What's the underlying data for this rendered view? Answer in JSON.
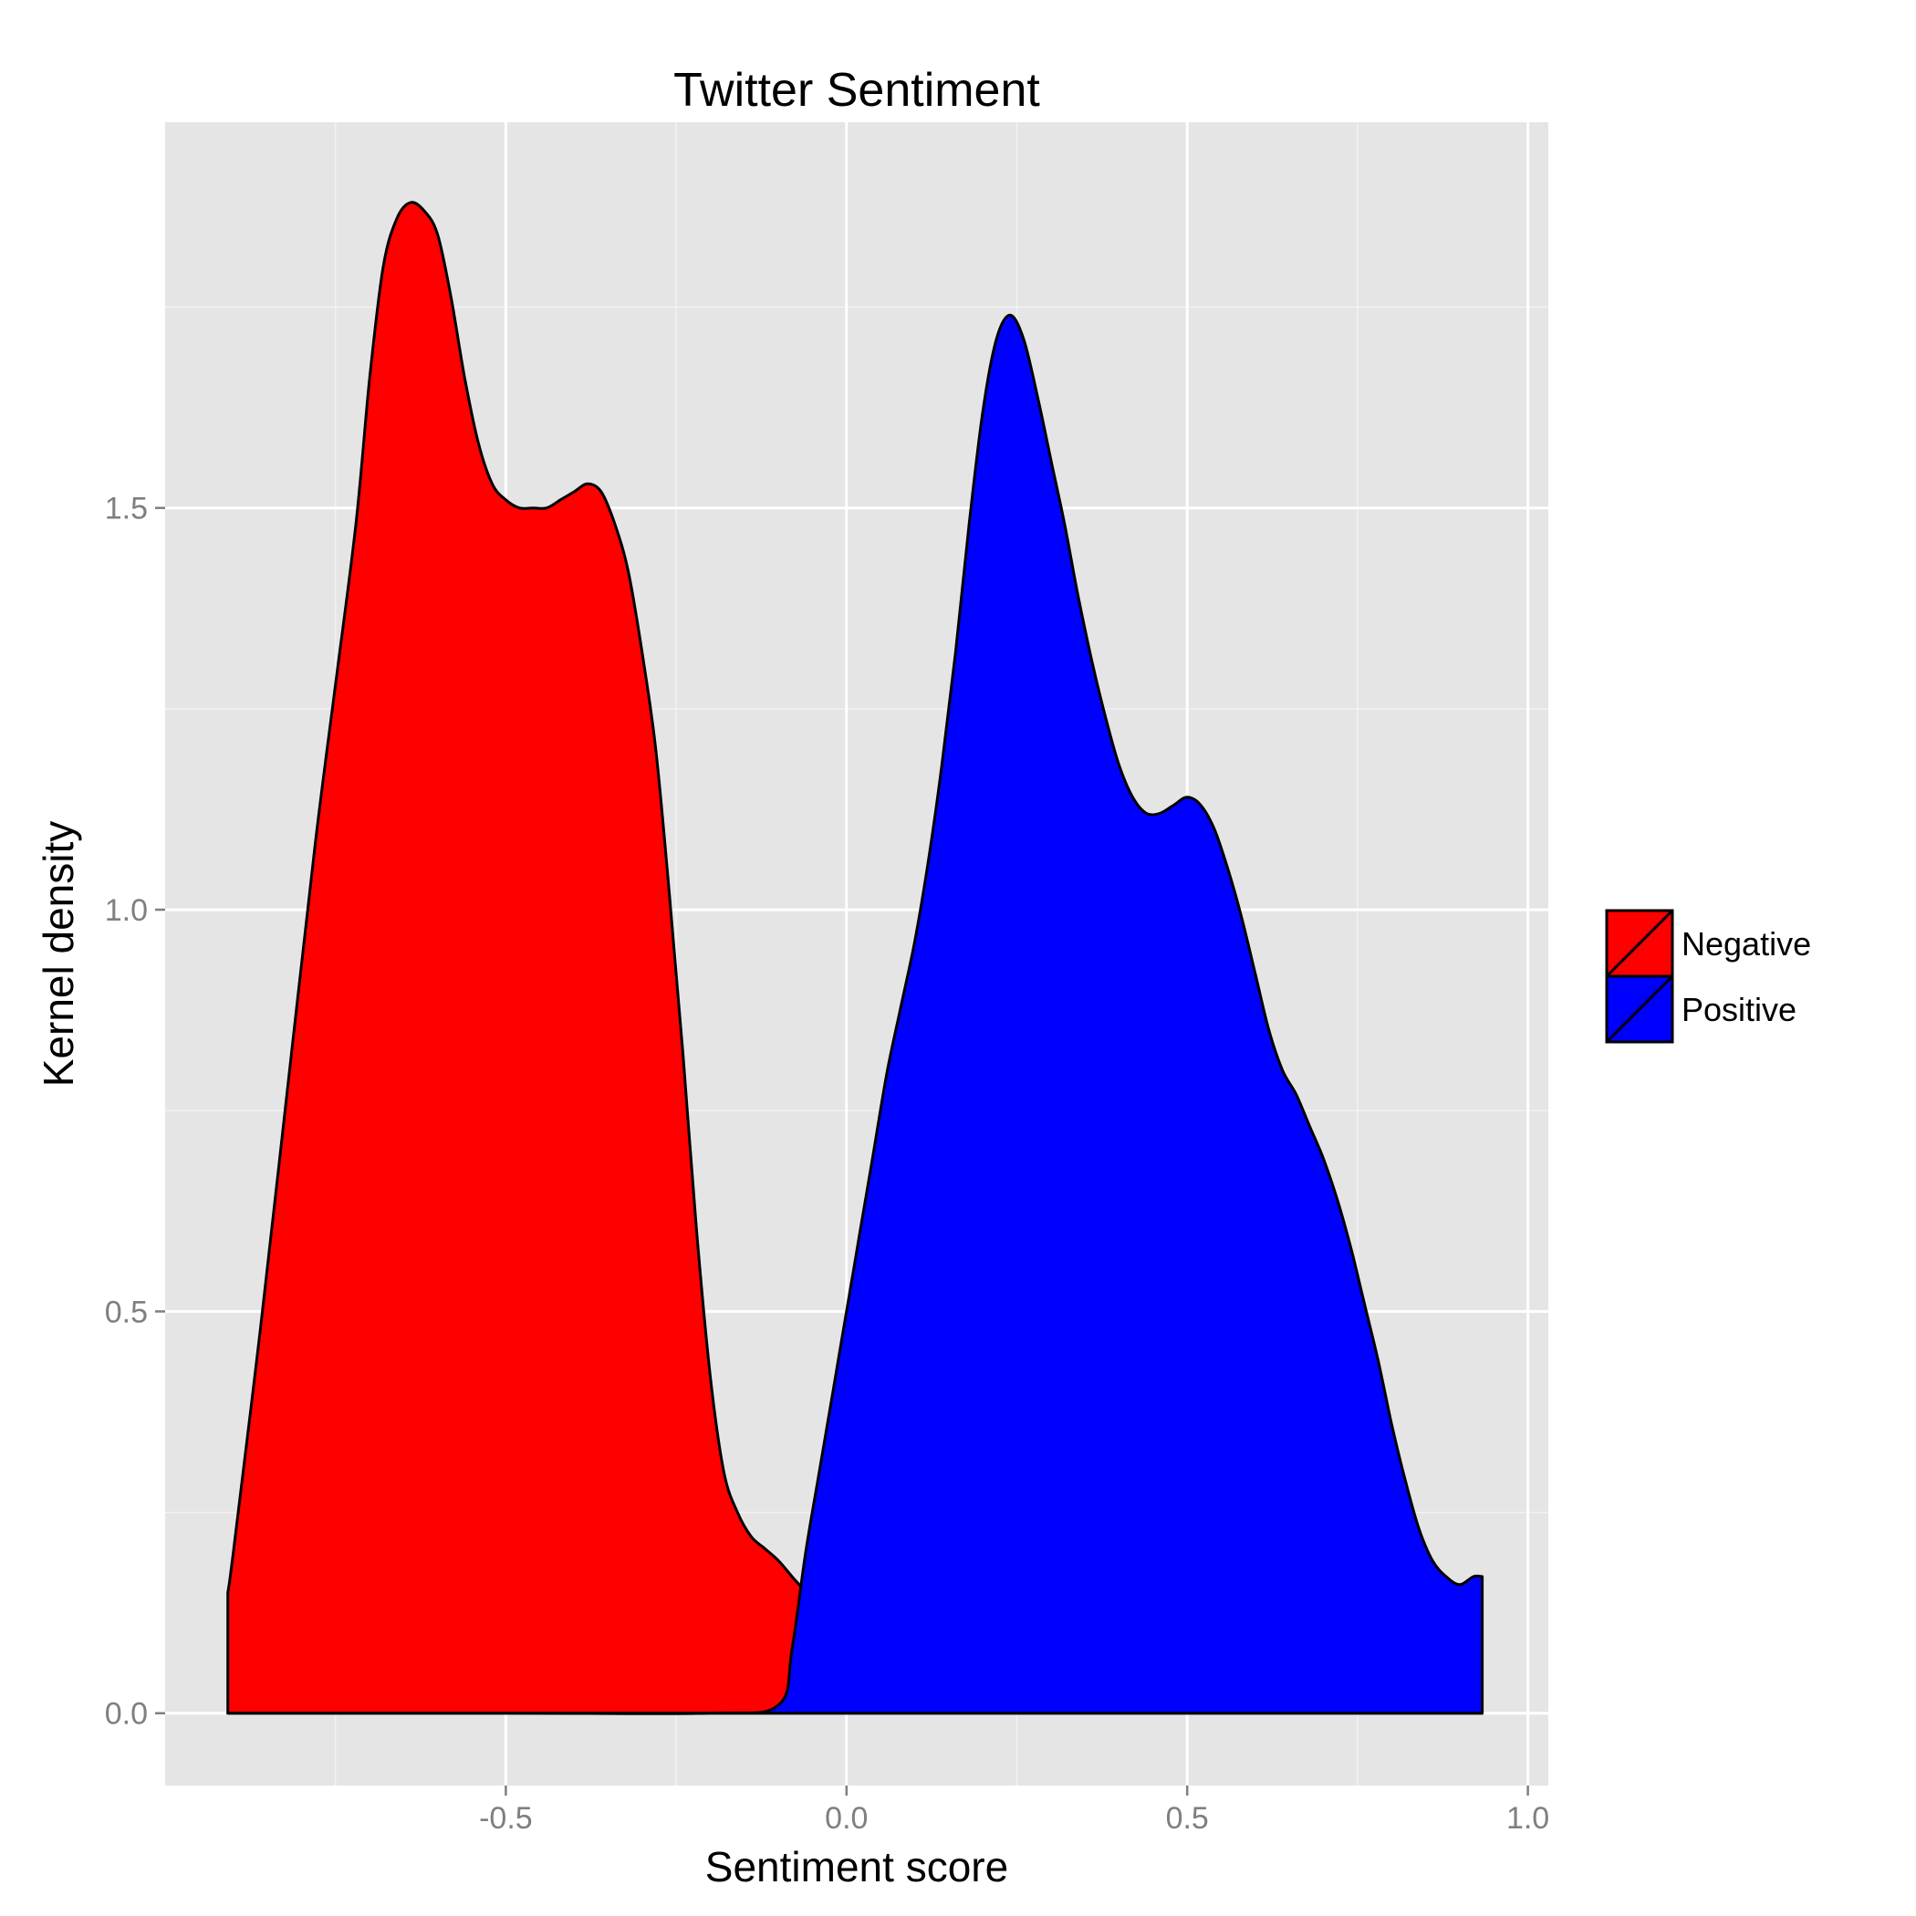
{
  "chart_data": {
    "type": "area",
    "title": "Twitter Sentiment",
    "xlabel": "Sentiment score",
    "ylabel": "Kernel density",
    "xlim": [
      -1.0,
      1.03
    ],
    "ylim": [
      -0.09,
      1.98
    ],
    "x_ticks": [
      {
        "value": -0.5,
        "label": "-0.5"
      },
      {
        "value": 0.0,
        "label": "0.0"
      },
      {
        "value": 0.5,
        "label": "0.5"
      },
      {
        "value": 1.0,
        "label": "1.0"
      }
    ],
    "y_ticks": [
      {
        "value": 0.0,
        "label": "0.0"
      },
      {
        "value": 0.5,
        "label": "0.5"
      },
      {
        "value": 1.0,
        "label": "1.0"
      },
      {
        "value": 1.5,
        "label": "1.5"
      }
    ],
    "grid": true,
    "legend_position": "right",
    "series": [
      {
        "name": "Negative",
        "color": "#ff0000",
        "x": [
          -0.908,
          -0.9,
          -0.86,
          -0.82,
          -0.78,
          -0.75,
          -0.72,
          -0.7,
          -0.68,
          -0.66,
          -0.64,
          -0.62,
          -0.6,
          -0.58,
          -0.56,
          -0.54,
          -0.52,
          -0.5,
          -0.48,
          -0.46,
          -0.44,
          -0.42,
          -0.4,
          -0.38,
          -0.36,
          -0.34,
          -0.32,
          -0.3,
          -0.28,
          -0.26,
          -0.24,
          -0.22,
          -0.2,
          -0.18,
          -0.16,
          -0.14,
          -0.12,
          -0.1,
          -0.08,
          -0.06,
          -0.04,
          -0.02,
          0.0,
          0.02,
          0.04,
          0.06,
          0.08,
          0.1,
          0.12,
          0.14,
          0.16,
          0.2,
          0.3,
          0.5,
          0.7,
          0.933
        ],
        "y": [
          0.15,
          0.2,
          0.48,
          0.78,
          1.08,
          1.28,
          1.48,
          1.66,
          1.8,
          1.86,
          1.88,
          1.87,
          1.84,
          1.76,
          1.66,
          1.58,
          1.53,
          1.51,
          1.5,
          1.5,
          1.5,
          1.51,
          1.52,
          1.53,
          1.52,
          1.48,
          1.42,
          1.32,
          1.2,
          1.02,
          0.82,
          0.6,
          0.42,
          0.3,
          0.25,
          0.22,
          0.205,
          0.19,
          0.17,
          0.15,
          0.12,
          0.09,
          0.06,
          0.035,
          0.018,
          0.008,
          0.004,
          0.002,
          0.001,
          0.0005,
          0.0003,
          0.0002,
          0.0001,
          0.0,
          0.0,
          0.0
        ]
      },
      {
        "name": "Positive",
        "color": "#0000ff",
        "x": [
          -0.908,
          -0.5,
          -0.2,
          -0.1,
          -0.08,
          -0.06,
          -0.04,
          -0.02,
          0.0,
          0.02,
          0.04,
          0.06,
          0.08,
          0.1,
          0.12,
          0.14,
          0.16,
          0.18,
          0.2,
          0.22,
          0.24,
          0.26,
          0.28,
          0.3,
          0.32,
          0.34,
          0.36,
          0.38,
          0.4,
          0.42,
          0.44,
          0.46,
          0.48,
          0.5,
          0.52,
          0.54,
          0.56,
          0.58,
          0.6,
          0.62,
          0.64,
          0.66,
          0.68,
          0.7,
          0.72,
          0.74,
          0.76,
          0.78,
          0.8,
          0.82,
          0.84,
          0.86,
          0.88,
          0.9,
          0.92,
          0.933
        ],
        "y": [
          0.0,
          0.0,
          0.0,
          0.01,
          0.08,
          0.2,
          0.3,
          0.4,
          0.5,
          0.6,
          0.7,
          0.8,
          0.88,
          0.96,
          1.06,
          1.18,
          1.32,
          1.48,
          1.62,
          1.71,
          1.74,
          1.71,
          1.64,
          1.56,
          1.48,
          1.39,
          1.31,
          1.24,
          1.18,
          1.14,
          1.12,
          1.12,
          1.13,
          1.14,
          1.13,
          1.1,
          1.05,
          0.99,
          0.92,
          0.85,
          0.8,
          0.77,
          0.73,
          0.69,
          0.64,
          0.58,
          0.51,
          0.44,
          0.36,
          0.29,
          0.23,
          0.19,
          0.17,
          0.16,
          0.17,
          0.17
        ]
      }
    ]
  }
}
